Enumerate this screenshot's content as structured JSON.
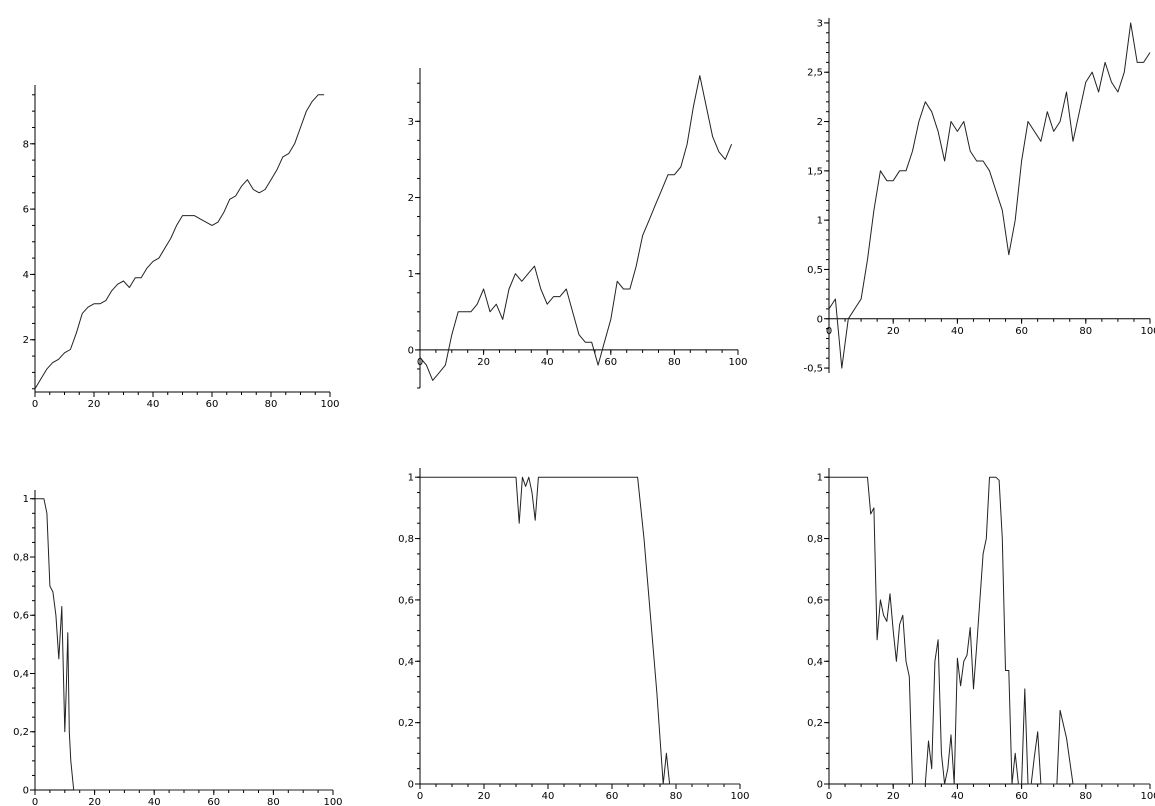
{
  "chart_data": [
    {
      "type": "line",
      "xlim": [
        0,
        100
      ],
      "ylim": [
        0.4,
        9.8
      ],
      "x_ticks": [
        "0",
        "20",
        "40",
        "60",
        "80",
        "100"
      ],
      "y_ticks": [
        "2",
        "4",
        "6",
        "8"
      ],
      "x_tick_values": [
        0,
        20,
        40,
        60,
        80,
        100
      ],
      "y_tick_values": [
        2,
        4,
        6,
        8
      ],
      "minor_y_step": 0.5,
      "x_axis_at": 0.4,
      "y_axis_at": 0,
      "x": [
        0,
        2,
        4,
        6,
        8,
        10,
        12,
        14,
        16,
        18,
        20,
        22,
        24,
        26,
        28,
        30,
        32,
        34,
        36,
        38,
        40,
        42,
        44,
        46,
        48,
        50,
        52,
        54,
        56,
        58,
        60,
        62,
        64,
        66,
        68,
        70,
        72,
        74,
        76,
        78,
        80,
        82,
        84,
        86,
        88,
        90,
        92,
        94,
        96,
        98
      ],
      "y": [
        0.5,
        0.8,
        1.1,
        1.3,
        1.4,
        1.6,
        1.7,
        2.2,
        2.8,
        3.0,
        3.1,
        3.1,
        3.2,
        3.5,
        3.7,
        3.8,
        3.6,
        3.9,
        3.9,
        4.2,
        4.4,
        4.5,
        4.8,
        5.1,
        5.5,
        5.8,
        5.8,
        5.8,
        5.7,
        5.6,
        5.5,
        5.6,
        5.9,
        6.3,
        6.4,
        6.7,
        6.9,
        6.6,
        6.5,
        6.6,
        6.9,
        7.2,
        7.6,
        7.7,
        8.0,
        8.5,
        9.0,
        9.3,
        9.5,
        9.5
      ]
    },
    {
      "type": "line",
      "xlim": [
        0,
        100
      ],
      "ylim": [
        -0.5,
        3.7
      ],
      "x_ticks": [
        "0",
        "20",
        "40",
        "60",
        "80",
        "100"
      ],
      "y_ticks": [
        "0",
        "1",
        "2",
        "3"
      ],
      "x_tick_values": [
        0,
        20,
        40,
        60,
        80,
        100
      ],
      "y_tick_values": [
        0,
        1,
        2,
        3
      ],
      "minor_y_step": 0.25,
      "x_axis_at": 0,
      "y_axis_at": 0,
      "x": [
        0,
        2,
        4,
        6,
        8,
        10,
        12,
        14,
        16,
        18,
        20,
        22,
        24,
        26,
        28,
        30,
        32,
        34,
        36,
        38,
        40,
        42,
        44,
        46,
        48,
        50,
        52,
        54,
        56,
        58,
        60,
        62,
        64,
        66,
        68,
        70,
        72,
        74,
        76,
        78,
        80,
        82,
        84,
        86,
        88,
        90,
        92,
        94,
        96,
        98
      ],
      "y": [
        -0.1,
        -0.2,
        -0.4,
        -0.3,
        -0.2,
        0.2,
        0.5,
        0.5,
        0.5,
        0.6,
        0.8,
        0.5,
        0.6,
        0.4,
        0.8,
        1.0,
        0.9,
        1.0,
        1.1,
        0.8,
        0.6,
        0.7,
        0.7,
        0.8,
        0.5,
        0.2,
        0.1,
        0.1,
        -0.2,
        0.1,
        0.4,
        0.9,
        0.8,
        0.8,
        1.1,
        1.5,
        1.7,
        1.9,
        2.1,
        2.3,
        2.3,
        2.4,
        2.7,
        3.2,
        3.6,
        3.2,
        2.8,
        2.6,
        2.5,
        2.7
      ]
    },
    {
      "type": "line",
      "xlim": [
        0,
        100
      ],
      "ylim": [
        -0.55,
        3.05
      ],
      "x_ticks": [
        "0",
        "20",
        "40",
        "60",
        "80",
        "100"
      ],
      "y_ticks": [
        "-0,5",
        "0",
        "0,5",
        "1",
        "1,5",
        "2",
        "2,5",
        "3"
      ],
      "x_tick_values": [
        0,
        20,
        40,
        60,
        80,
        100
      ],
      "y_tick_values": [
        -0.5,
        0,
        0.5,
        1,
        1.5,
        2,
        2.5,
        3
      ],
      "minor_y_step": 0.1,
      "x_axis_at": 0,
      "y_axis_at": 0,
      "x": [
        0,
        2,
        4,
        6,
        8,
        10,
        12,
        14,
        16,
        18,
        20,
        22,
        24,
        26,
        28,
        30,
        32,
        34,
        36,
        38,
        40,
        42,
        44,
        46,
        48,
        50,
        52,
        54,
        56,
        58,
        60,
        62,
        64,
        66,
        68,
        70,
        72,
        74,
        76,
        78,
        80,
        82,
        84,
        86,
        88,
        90,
        92,
        94,
        96,
        98,
        100
      ],
      "y": [
        0.1,
        0.2,
        -0.5,
        0.0,
        0.1,
        0.2,
        0.6,
        1.1,
        1.5,
        1.4,
        1.4,
        1.5,
        1.5,
        1.7,
        2.0,
        2.2,
        2.1,
        1.9,
        1.6,
        2.0,
        1.9,
        2.0,
        1.7,
        1.6,
        1.6,
        1.5,
        1.3,
        1.1,
        0.65,
        1.0,
        1.6,
        2.0,
        1.9,
        1.8,
        2.1,
        1.9,
        2.0,
        2.3,
        1.8,
        2.1,
        2.4,
        2.5,
        2.3,
        2.6,
        2.4,
        2.3,
        2.5,
        3.0,
        2.6,
        2.6,
        2.7
      ]
    },
    {
      "type": "line",
      "xlim": [
        0,
        100
      ],
      "ylim": [
        0,
        1.03
      ],
      "x_ticks": [
        "0",
        "20",
        "40",
        "60",
        "80",
        "100"
      ],
      "y_ticks": [
        "0",
        "0,2",
        "0,4",
        "0,6",
        "0,8",
        "1"
      ],
      "x_tick_values": [
        0,
        20,
        40,
        60,
        80,
        100
      ],
      "y_tick_values": [
        0,
        0.2,
        0.4,
        0.6,
        0.8,
        1
      ],
      "minor_y_step": 0.05,
      "x_axis_at": 0,
      "y_axis_at": 0,
      "x": [
        0,
        2,
        3,
        4,
        5,
        6,
        7,
        8,
        9,
        10,
        10.5,
        11,
        11.5,
        12,
        13,
        14,
        15,
        16,
        18,
        20,
        30,
        40,
        50,
        60,
        70,
        80,
        90,
        100
      ],
      "y": [
        1,
        1,
        1,
        0.95,
        0.7,
        0.68,
        0.6,
        0.45,
        0.63,
        0.2,
        0.35,
        0.54,
        0.2,
        0.1,
        0,
        0,
        0,
        0,
        0,
        0,
        0,
        0,
        0,
        0,
        0,
        0,
        0,
        0
      ]
    },
    {
      "type": "line",
      "xlim": [
        0,
        100
      ],
      "ylim": [
        0,
        1.03
      ],
      "x_ticks": [
        "0",
        "20",
        "40",
        "60",
        "80",
        "100"
      ],
      "y_ticks": [
        "0",
        "0,2",
        "0,4",
        "0,6",
        "0,8",
        "1"
      ],
      "x_tick_values": [
        0,
        20,
        40,
        60,
        80,
        100
      ],
      "y_tick_values": [
        0,
        0.2,
        0.4,
        0.6,
        0.8,
        1
      ],
      "minor_y_step": 0.05,
      "x_axis_at": 0,
      "y_axis_at": 0,
      "x": [
        0,
        10,
        20,
        30,
        31,
        32,
        33,
        34,
        35,
        36,
        37,
        38,
        39,
        40,
        50,
        60,
        68,
        70,
        72,
        74,
        75,
        76,
        77,
        78,
        80,
        90,
        100
      ],
      "y": [
        1,
        1,
        1,
        1,
        0.85,
        1,
        0.97,
        1,
        0.95,
        0.86,
        1,
        1,
        1,
        1,
        1,
        1,
        1,
        0.8,
        0.55,
        0.3,
        0.15,
        0,
        0.1,
        0,
        0,
        0,
        0
      ]
    },
    {
      "type": "line",
      "xlim": [
        0,
        100
      ],
      "ylim": [
        0,
        1.03
      ],
      "x_ticks": [
        "0",
        "20",
        "40",
        "60",
        "80",
        "100"
      ],
      "y_ticks": [
        "0",
        "0,2",
        "0,4",
        "0,6",
        "0,8",
        "1"
      ],
      "x_tick_values": [
        0,
        20,
        40,
        60,
        80,
        100
      ],
      "y_tick_values": [
        0,
        0.2,
        0.4,
        0.6,
        0.8,
        1
      ],
      "minor_y_step": 0.05,
      "x_axis_at": 0,
      "y_axis_at": 0,
      "x": [
        0,
        4,
        8,
        12,
        13,
        14,
        15,
        16,
        17,
        18,
        19,
        20,
        21,
        22,
        23,
        24,
        25,
        26,
        27,
        28,
        30,
        31,
        32,
        33,
        34,
        35,
        36,
        37,
        38,
        39,
        40,
        41,
        42,
        43,
        44,
        45,
        46,
        47,
        48,
        49,
        50,
        51,
        52,
        53,
        54,
        55,
        56,
        57,
        58,
        59,
        60,
        61,
        62,
        63,
        64,
        65,
        66,
        67,
        68,
        69,
        70,
        71,
        72,
        74,
        76,
        77,
        78,
        80,
        85,
        90,
        95,
        100
      ],
      "y": [
        1,
        1,
        1,
        1,
        0.88,
        0.9,
        0.47,
        0.6,
        0.55,
        0.53,
        0.62,
        0.5,
        0.4,
        0.52,
        0.55,
        0.4,
        0.35,
        0,
        0,
        0,
        0,
        0.14,
        0.05,
        0.4,
        0.47,
        0.1,
        0,
        0.05,
        0.16,
        0,
        0.41,
        0.32,
        0.4,
        0.42,
        0.51,
        0.31,
        0.45,
        0.6,
        0.75,
        0.8,
        1,
        1,
        1,
        0.99,
        0.8,
        0.37,
        0.37,
        0,
        0.1,
        0,
        0,
        0.31,
        0,
        0,
        0.09,
        0.17,
        0,
        0,
        0,
        0,
        0,
        0,
        0.24,
        0.15,
        0,
        0,
        0,
        0,
        0,
        0,
        0,
        0
      ]
    }
  ]
}
